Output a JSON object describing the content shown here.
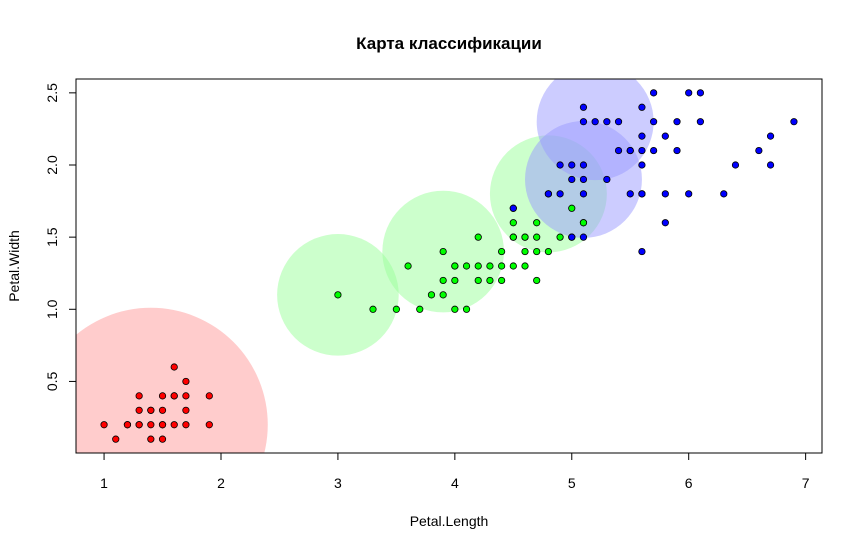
{
  "chart_data": {
    "type": "scatter",
    "title": "Карта классификации",
    "xlabel": "Petal.Length",
    "ylabel": "Petal.Width",
    "xlim": [
      0.76,
      7.14
    ],
    "ylim": [
      0.004,
      2.596
    ],
    "x_ticks": [
      "1",
      "2",
      "3",
      "4",
      "5",
      "6",
      "7"
    ],
    "x_tick_values": [
      1,
      2,
      3,
      4,
      5,
      6,
      7
    ],
    "y_ticks": [
      "0.5",
      "1.0",
      "1.5",
      "2.0",
      "2.5"
    ],
    "y_tick_values": [
      0.5,
      1.0,
      1.5,
      2.0,
      2.5
    ],
    "grid": false,
    "circles": [
      {
        "x": 1.4,
        "y": 0.2,
        "r": 1.0,
        "color": "#ff9999"
      },
      {
        "x": 3.0,
        "y": 1.1,
        "r": 0.52,
        "color": "#99ff99"
      },
      {
        "x": 3.9,
        "y": 1.4,
        "r": 0.52,
        "color": "#99ff99"
      },
      {
        "x": 4.8,
        "y": 1.8,
        "r": 0.5,
        "color": "#99ff99"
      },
      {
        "x": 5.1,
        "y": 1.9,
        "r": 0.5,
        "color": "#9999ff"
      },
      {
        "x": 5.2,
        "y": 2.3,
        "r": 0.5,
        "color": "#9999ff"
      }
    ],
    "series": [
      {
        "color": "#ff0000",
        "x": [
          1.0,
          1.1,
          1.2,
          1.2,
          1.3,
          1.3,
          1.3,
          1.3,
          1.4,
          1.4,
          1.4,
          1.4,
          1.5,
          1.5,
          1.5,
          1.5,
          1.5,
          1.6,
          1.6,
          1.6,
          1.6,
          1.7,
          1.7,
          1.7,
          1.7,
          1.9,
          1.9
        ],
        "y": [
          0.2,
          0.1,
          0.2,
          0.2,
          0.4,
          0.3,
          0.2,
          0.2,
          0.3,
          0.2,
          0.1,
          0.3,
          0.4,
          0.3,
          0.2,
          0.1,
          0.2,
          0.6,
          0.4,
          0.2,
          0.4,
          0.5,
          0.3,
          0.2,
          0.4,
          0.4,
          0.2
        ]
      },
      {
        "color": "#00ff00",
        "x": [
          3.0,
          3.3,
          3.5,
          3.6,
          3.7,
          3.8,
          3.9,
          3.9,
          3.9,
          4.0,
          4.0,
          4.0,
          4.0,
          4.1,
          4.1,
          4.2,
          4.2,
          4.2,
          4.3,
          4.3,
          4.4,
          4.4,
          4.4,
          4.5,
          4.5,
          4.5,
          4.5,
          4.5,
          4.6,
          4.6,
          4.6,
          4.6,
          4.7,
          4.7,
          4.7,
          4.7,
          4.8,
          4.8,
          4.9,
          5.0,
          5.0,
          5.1,
          5.1
        ],
        "y": [
          1.1,
          1.0,
          1.0,
          1.3,
          1.0,
          1.1,
          1.4,
          1.2,
          1.1,
          1.3,
          1.2,
          1.0,
          1.3,
          1.3,
          1.0,
          1.5,
          1.3,
          1.2,
          1.3,
          1.2,
          1.4,
          1.3,
          1.2,
          1.6,
          1.5,
          1.3,
          1.7,
          1.5,
          1.5,
          1.4,
          1.3,
          1.5,
          1.6,
          1.4,
          1.2,
          1.5,
          1.8,
          1.4,
          1.5,
          1.7,
          1.5,
          1.6,
          1.6
        ]
      },
      {
        "color": "#0000ff",
        "x": [
          4.5,
          4.8,
          4.9,
          4.9,
          5.0,
          5.0,
          5.0,
          5.1,
          5.1,
          5.1,
          5.1,
          5.1,
          5.1,
          5.2,
          5.3,
          5.3,
          5.4,
          5.4,
          5.5,
          5.5,
          5.6,
          5.6,
          5.6,
          5.6,
          5.6,
          5.7,
          5.7,
          5.7,
          5.8,
          5.8,
          5.9,
          5.9,
          6.0,
          6.0,
          6.1,
          6.1,
          6.3,
          6.4,
          6.6,
          6.7,
          6.7,
          6.9,
          5.6,
          5.8,
          5.6,
          5.5
        ],
        "y": [
          1.7,
          1.8,
          1.8,
          2.0,
          2.0,
          1.5,
          1.9,
          2.4,
          2.0,
          1.9,
          2.3,
          1.8,
          1.5,
          2.3,
          2.3,
          1.9,
          2.1,
          2.3,
          1.8,
          2.1,
          2.4,
          2.2,
          2.1,
          1.8,
          1.4,
          2.5,
          2.3,
          2.1,
          2.2,
          1.8,
          2.3,
          2.1,
          2.5,
          1.8,
          2.5,
          2.3,
          1.8,
          2.0,
          2.1,
          2.2,
          2.0,
          2.3,
          1.8,
          1.6,
          2.0,
          2.1
        ]
      }
    ]
  }
}
